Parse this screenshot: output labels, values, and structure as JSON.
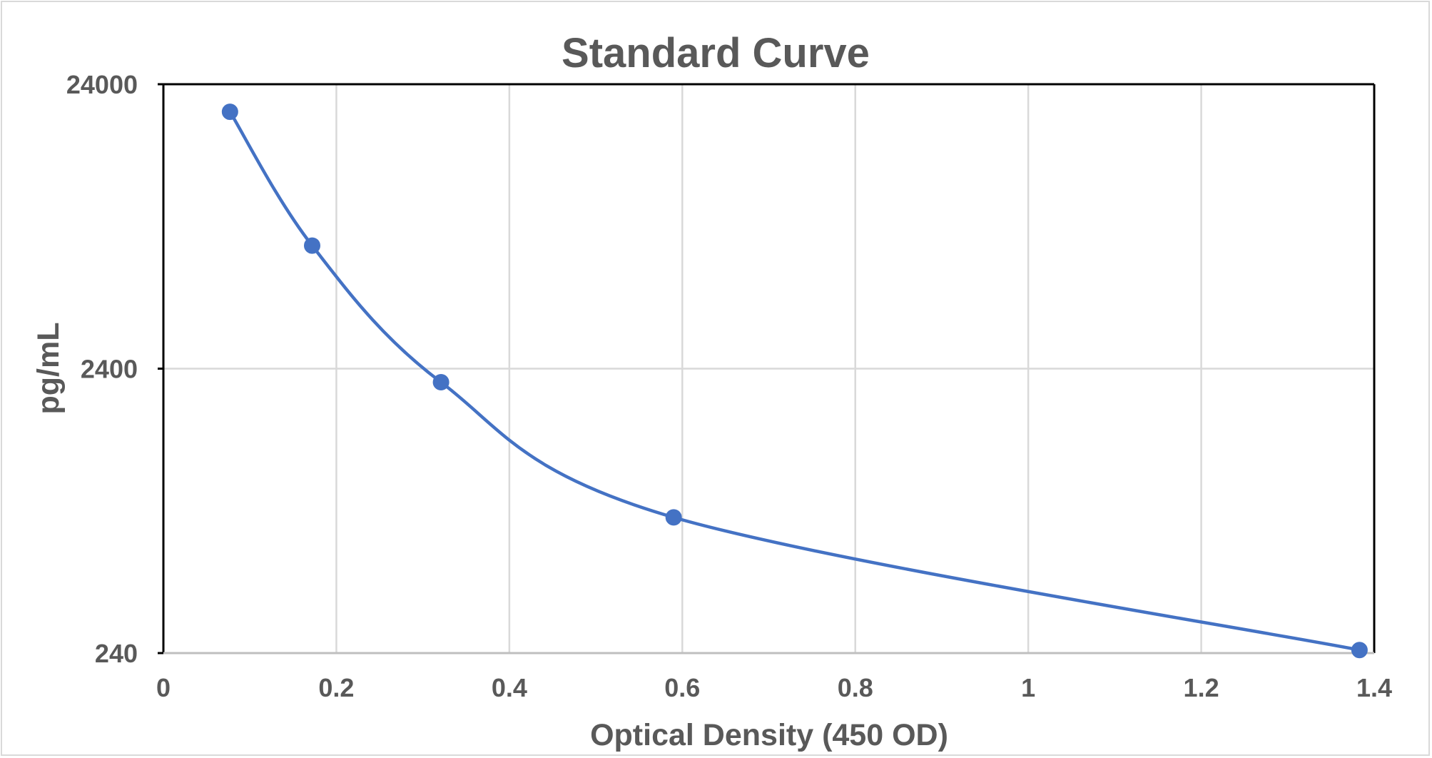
{
  "chart_data": {
    "type": "scatter",
    "title": "Standard Curve",
    "xlabel": "Optical Density (450 OD)",
    "ylabel": "pg/mL",
    "x_scale": "linear",
    "y_scale": "log",
    "xlim": [
      0,
      1.4
    ],
    "ylim": [
      240,
      24000
    ],
    "x_ticks": [
      "0",
      "0.2",
      "0.4",
      "0.6",
      "0.8",
      "1",
      "1.2",
      "1.4"
    ],
    "y_ticks": [
      "240",
      "2400",
      "24000"
    ],
    "grid": true,
    "smoothed_line": true,
    "series": [
      {
        "color": "#4472c4",
        "x": [
          0.077,
          0.172,
          0.321,
          0.59,
          1.383
        ],
        "y": [
          19200,
          6500,
          2150,
          720,
          246
        ]
      }
    ]
  }
}
